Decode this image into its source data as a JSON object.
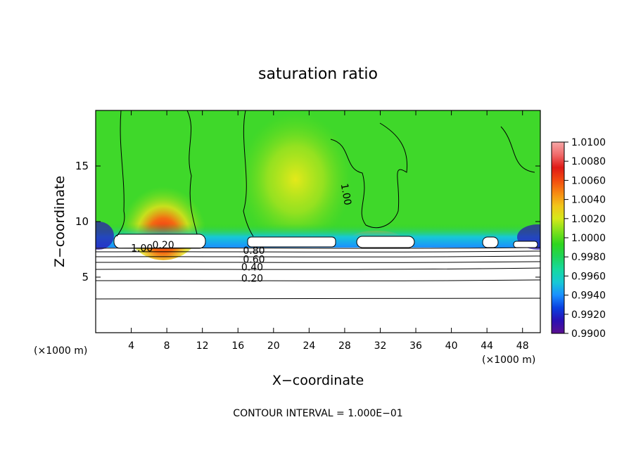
{
  "chart_data": {
    "type": "heatmap",
    "title": "saturation ratio",
    "xlabel": "X−coordinate",
    "ylabel": "Z−coordinate",
    "x_unit": "(×1000 m)",
    "x_unit_right": "(×1000 m)",
    "xlim": [
      0,
      50
    ],
    "ylim": [
      0,
      20
    ],
    "xticks": [
      4,
      8,
      12,
      16,
      20,
      24,
      28,
      32,
      36,
      40,
      44,
      48
    ],
    "yticks": [
      5,
      10,
      15
    ],
    "footer": "CONTOUR INTERVAL = 1.000E−01",
    "colorbar": {
      "min": 0.99,
      "max": 1.01,
      "labels": [
        "1.0100",
        "1.0080",
        "1.0060",
        "1.0040",
        "1.0020",
        "1.0000",
        "0.9980",
        "0.9960",
        "0.9940",
        "0.9920",
        "0.9900"
      ],
      "colors": [
        "#5b0f8f",
        "#2a0fb3",
        "#0a3fe0",
        "#1a8fff",
        "#17c8d6",
        "#16d9a0",
        "#1fd45a",
        "#2fd61e",
        "#7ee11c",
        "#d6e81a",
        "#f2c51a",
        "#f78a12",
        "#f24b10",
        "#e01a16",
        "#f06a6a",
        "#f6a7a7"
      ]
    },
    "contour_labels": [
      {
        "text": "1.00",
        "x": 5.2,
        "y": 7.3
      },
      {
        "text": "0.20",
        "x": 7.6,
        "y": 7.6
      },
      {
        "text": "0.80",
        "x": 17.8,
        "y": 7.1
      },
      {
        "text": "0.60",
        "x": 17.8,
        "y": 6.3
      },
      {
        "text": "0.40",
        "x": 17.6,
        "y": 5.6
      },
      {
        "text": "0.20",
        "x": 17.6,
        "y": 4.6
      },
      {
        "text": "1.00",
        "x": 27.8,
        "y": 12.4
      }
    ]
  }
}
